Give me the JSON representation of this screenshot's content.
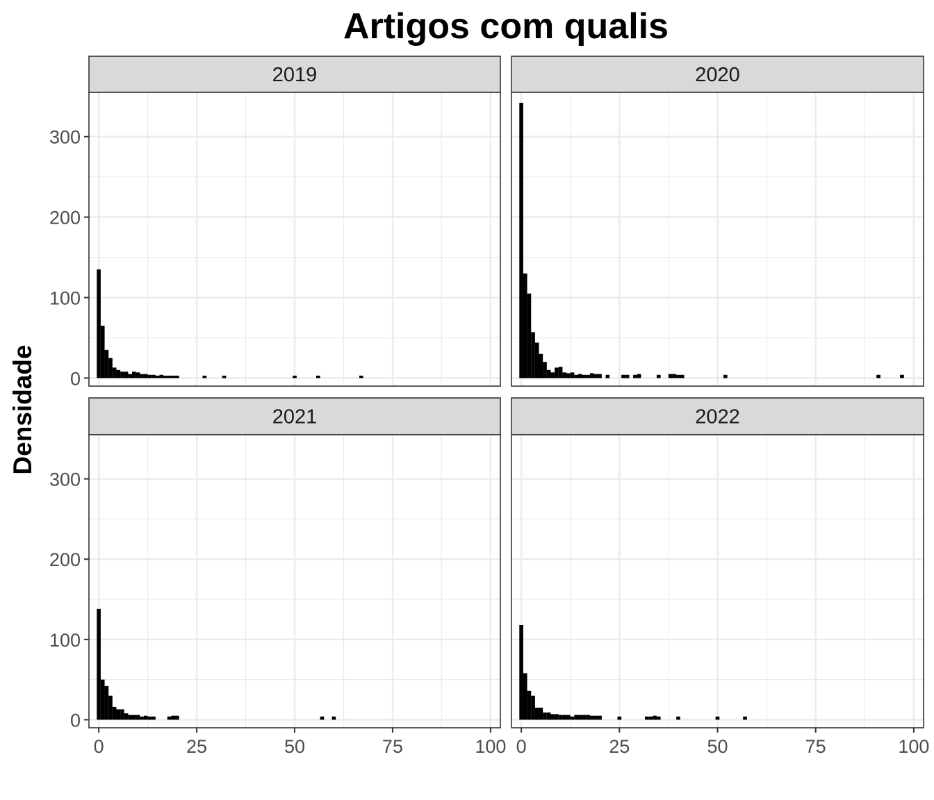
{
  "chart_data": {
    "type": "bar",
    "title": "Artigos com qualis",
    "xlabel": "",
    "ylabel": "Densidade",
    "xlim": [
      -2.5,
      102.5
    ],
    "ylim": [
      -10,
      355
    ],
    "x_ticks": [
      0,
      25,
      50,
      75,
      100
    ],
    "x_tick_labels": [
      "0",
      "25",
      "50",
      "75",
      "100"
    ],
    "y_ticks": [
      0,
      100,
      200,
      300
    ],
    "y_tick_labels": [
      "0",
      "100",
      "200",
      "300"
    ],
    "grid": true,
    "bin_width": 1,
    "facets": [
      {
        "label": "2019",
        "bins": [
          {
            "x": 0,
            "y": 135
          },
          {
            "x": 1,
            "y": 65
          },
          {
            "x": 2,
            "y": 35
          },
          {
            "x": 3,
            "y": 25
          },
          {
            "x": 4,
            "y": 13
          },
          {
            "x": 5,
            "y": 10
          },
          {
            "x": 6,
            "y": 8
          },
          {
            "x": 7,
            "y": 8
          },
          {
            "x": 8,
            "y": 5
          },
          {
            "x": 9,
            "y": 8
          },
          {
            "x": 10,
            "y": 7
          },
          {
            "x": 11,
            "y": 5
          },
          {
            "x": 12,
            "y": 5
          },
          {
            "x": 13,
            "y": 4
          },
          {
            "x": 14,
            "y": 4
          },
          {
            "x": 15,
            "y": 3
          },
          {
            "x": 16,
            "y": 4
          },
          {
            "x": 17,
            "y": 3
          },
          {
            "x": 18,
            "y": 3
          },
          {
            "x": 19,
            "y": 3
          },
          {
            "x": 20,
            "y": 3
          },
          {
            "x": 27,
            "y": 3
          },
          {
            "x": 32,
            "y": 3
          },
          {
            "x": 50,
            "y": 3
          },
          {
            "x": 56,
            "y": 3
          },
          {
            "x": 67,
            "y": 3
          }
        ]
      },
      {
        "label": "2020",
        "bins": [
          {
            "x": 0,
            "y": 342
          },
          {
            "x": 1,
            "y": 130
          },
          {
            "x": 2,
            "y": 105
          },
          {
            "x": 3,
            "y": 57
          },
          {
            "x": 4,
            "y": 44
          },
          {
            "x": 5,
            "y": 30
          },
          {
            "x": 6,
            "y": 20
          },
          {
            "x": 7,
            "y": 10
          },
          {
            "x": 8,
            "y": 7
          },
          {
            "x": 9,
            "y": 13
          },
          {
            "x": 10,
            "y": 14
          },
          {
            "x": 11,
            "y": 7
          },
          {
            "x": 12,
            "y": 6
          },
          {
            "x": 13,
            "y": 7
          },
          {
            "x": 14,
            "y": 4
          },
          {
            "x": 15,
            "y": 5
          },
          {
            "x": 16,
            "y": 4
          },
          {
            "x": 17,
            "y": 4
          },
          {
            "x": 18,
            "y": 6
          },
          {
            "x": 19,
            "y": 5
          },
          {
            "x": 20,
            "y": 5
          },
          {
            "x": 22,
            "y": 4
          },
          {
            "x": 26,
            "y": 4
          },
          {
            "x": 27,
            "y": 4
          },
          {
            "x": 29,
            "y": 4
          },
          {
            "x": 30,
            "y": 5
          },
          {
            "x": 35,
            "y": 4
          },
          {
            "x": 38,
            "y": 5
          },
          {
            "x": 39,
            "y": 5
          },
          {
            "x": 40,
            "y": 4
          },
          {
            "x": 41,
            "y": 4
          },
          {
            "x": 52,
            "y": 4
          },
          {
            "x": 91,
            "y": 4
          },
          {
            "x": 97,
            "y": 4
          }
        ]
      },
      {
        "label": "2021",
        "bins": [
          {
            "x": 0,
            "y": 138
          },
          {
            "x": 1,
            "y": 50
          },
          {
            "x": 2,
            "y": 42
          },
          {
            "x": 3,
            "y": 30
          },
          {
            "x": 4,
            "y": 16
          },
          {
            "x": 5,
            "y": 13
          },
          {
            "x": 6,
            "y": 13
          },
          {
            "x": 7,
            "y": 8
          },
          {
            "x": 8,
            "y": 6
          },
          {
            "x": 9,
            "y": 6
          },
          {
            "x": 10,
            "y": 6
          },
          {
            "x": 11,
            "y": 4
          },
          {
            "x": 12,
            "y": 5
          },
          {
            "x": 13,
            "y": 4
          },
          {
            "x": 14,
            "y": 4
          },
          {
            "x": 18,
            "y": 4
          },
          {
            "x": 19,
            "y": 5
          },
          {
            "x": 20,
            "y": 5
          },
          {
            "x": 57,
            "y": 4
          },
          {
            "x": 60,
            "y": 4
          }
        ]
      },
      {
        "label": "2022",
        "bins": [
          {
            "x": 0,
            "y": 118
          },
          {
            "x": 1,
            "y": 58
          },
          {
            "x": 2,
            "y": 36
          },
          {
            "x": 3,
            "y": 30
          },
          {
            "x": 4,
            "y": 15
          },
          {
            "x": 5,
            "y": 15
          },
          {
            "x": 6,
            "y": 9
          },
          {
            "x": 7,
            "y": 9
          },
          {
            "x": 8,
            "y": 7
          },
          {
            "x": 9,
            "y": 7
          },
          {
            "x": 10,
            "y": 6
          },
          {
            "x": 11,
            "y": 6
          },
          {
            "x": 12,
            "y": 6
          },
          {
            "x": 13,
            "y": 4
          },
          {
            "x": 14,
            "y": 6
          },
          {
            "x": 15,
            "y": 6
          },
          {
            "x": 16,
            "y": 6
          },
          {
            "x": 17,
            "y": 6
          },
          {
            "x": 18,
            "y": 5
          },
          {
            "x": 19,
            "y": 5
          },
          {
            "x": 20,
            "y": 5
          },
          {
            "x": 25,
            "y": 4
          },
          {
            "x": 32,
            "y": 4
          },
          {
            "x": 33,
            "y": 4
          },
          {
            "x": 34,
            "y": 5
          },
          {
            "x": 35,
            "y": 4
          },
          {
            "x": 40,
            "y": 4
          },
          {
            "x": 50,
            "y": 4
          },
          {
            "x": 57,
            "y": 4
          }
        ]
      }
    ]
  }
}
